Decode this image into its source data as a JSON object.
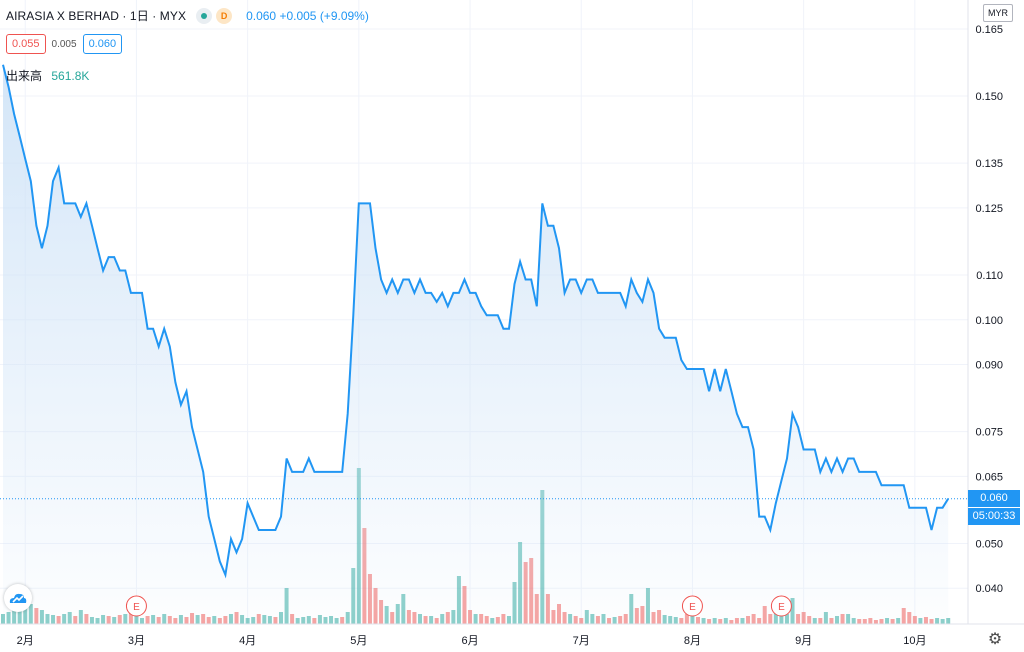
{
  "header": {
    "symbol_title": "AIRASIA X BERHAD · 1日 · MYX",
    "delay_badge": "D",
    "last_change": "0.060 +0.005 (+9.09%)"
  },
  "quote": {
    "bid": "0.055",
    "spread": "0.005",
    "ask": "0.060"
  },
  "volume": {
    "label": "出来高",
    "value": "561.8K"
  },
  "axis": {
    "currency": "MYR",
    "current_price_label": "0.060",
    "countdown_label": "05:00:33"
  },
  "colors": {
    "line": "#2196f3",
    "area_top": "#cfe3f7",
    "up_volume": "#26a69a",
    "down_volume": "#ef5350",
    "earnings_marker": "#ef5350",
    "grid": "#f0f3fa"
  },
  "icons": {
    "logo": "tradingview-cloud-logo",
    "settings": "gear-icon",
    "status": "market-open-dot"
  },
  "chart_data": {
    "type": "area",
    "ylim": [
      0.032,
      0.167
    ],
    "y_ticks": [
      "0.165",
      "0.150",
      "0.135",
      "0.125",
      "0.110",
      "0.100",
      "0.090",
      "0.075",
      "0.065",
      "0.050",
      "0.040"
    ],
    "y_tick_values": [
      0.165,
      0.15,
      0.135,
      0.125,
      0.11,
      0.1,
      0.09,
      0.075,
      0.065,
      0.05,
      0.04
    ],
    "month_labels": [
      "2月",
      "3月",
      "4月",
      "5月",
      "6月",
      "7月",
      "8月",
      "9月",
      "10月"
    ],
    "month_positions": [
      4,
      24,
      44,
      64,
      84,
      104,
      124,
      144,
      164
    ],
    "earnings_markers": {
      "label": "E",
      "indices": [
        24,
        124,
        140
      ]
    },
    "current_price": 0.06,
    "series": [
      {
        "values": [
          0.157,
          0.152,
          0.146,
          0.141,
          0.136,
          0.131,
          0.121,
          0.116,
          0.121,
          0.131,
          0.134,
          0.126,
          0.126,
          0.126,
          0.123,
          0.126,
          0.121,
          0.116,
          0.111,
          0.114,
          0.114,
          0.111,
          0.111,
          0.106,
          0.106,
          0.106,
          0.098,
          0.098,
          0.094,
          0.098,
          0.094,
          0.086,
          0.081,
          0.084,
          0.076,
          0.071,
          0.066,
          0.056,
          0.051,
          0.046,
          0.043,
          0.051,
          0.048,
          0.051,
          0.059,
          0.056,
          0.053,
          0.053,
          0.053,
          0.053,
          0.056,
          0.069,
          0.066,
          0.066,
          0.066,
          0.069,
          0.066,
          0.066,
          0.066,
          0.066,
          0.066,
          0.066,
          0.079,
          0.101,
          0.126,
          0.126,
          0.126,
          0.116,
          0.109,
          0.106,
          0.109,
          0.106,
          0.109,
          0.109,
          0.106,
          0.109,
          0.106,
          0.106,
          0.104,
          0.106,
          0.103,
          0.106,
          0.106,
          0.109,
          0.106,
          0.106,
          0.103,
          0.101,
          0.101,
          0.101,
          0.098,
          0.098,
          0.108,
          0.113,
          0.109,
          0.109,
          0.103,
          0.126,
          0.121,
          0.121,
          0.116,
          0.106,
          0.109,
          0.109,
          0.106,
          0.109,
          0.109,
          0.106,
          0.106,
          0.106,
          0.106,
          0.106,
          0.103,
          0.109,
          0.106,
          0.104,
          0.109,
          0.106,
          0.098,
          0.096,
          0.096,
          0.096,
          0.091,
          0.089,
          0.089,
          0.089,
          0.089,
          0.084,
          0.089,
          0.084,
          0.089,
          0.084,
          0.079,
          0.076,
          0.076,
          0.071,
          0.056,
          0.056,
          0.053,
          0.059,
          0.064,
          0.069,
          0.079,
          0.076,
          0.071,
          0.071,
          0.071,
          0.066,
          0.069,
          0.066,
          0.069,
          0.066,
          0.069,
          0.069,
          0.066,
          0.066,
          0.066,
          0.066,
          0.063,
          0.063,
          0.063,
          0.063,
          0.063,
          0.058,
          0.058,
          0.058,
          0.058,
          0.053,
          0.058,
          0.058,
          0.06
        ]
      }
    ],
    "volume_series": {
      "values": [
        0.1,
        0.12,
        0.18,
        0.17,
        0.22,
        0.2,
        0.16,
        0.14,
        0.1,
        0.09,
        0.08,
        0.1,
        0.12,
        0.08,
        0.14,
        0.1,
        0.07,
        0.06,
        0.09,
        0.08,
        0.07,
        0.09,
        0.1,
        0.12,
        0.11,
        0.06,
        0.08,
        0.09,
        0.07,
        0.1,
        0.08,
        0.06,
        0.09,
        0.07,
        0.11,
        0.09,
        0.1,
        0.07,
        0.08,
        0.06,
        0.08,
        0.1,
        0.12,
        0.09,
        0.06,
        0.07,
        0.1,
        0.09,
        0.08,
        0.07,
        0.12,
        0.36,
        0.1,
        0.06,
        0.07,
        0.08,
        0.06,
        0.09,
        0.07,
        0.08,
        0.06,
        0.07,
        0.12,
        0.56,
        1.56,
        0.96,
        0.5,
        0.36,
        0.24,
        0.18,
        0.12,
        0.2,
        0.3,
        0.14,
        0.12,
        0.1,
        0.08,
        0.08,
        0.06,
        0.1,
        0.12,
        0.14,
        0.48,
        0.38,
        0.14,
        0.1,
        0.1,
        0.08,
        0.06,
        0.07,
        0.1,
        0.08,
        0.42,
        0.82,
        0.62,
        0.66,
        0.3,
        1.34,
        0.3,
        0.14,
        0.2,
        0.12,
        0.1,
        0.08,
        0.06,
        0.14,
        0.1,
        0.08,
        0.1,
        0.06,
        0.07,
        0.08,
        0.1,
        0.3,
        0.16,
        0.18,
        0.36,
        0.12,
        0.14,
        0.09,
        0.08,
        0.07,
        0.06,
        0.1,
        0.08,
        0.07,
        0.06,
        0.05,
        0.06,
        0.05,
        0.06,
        0.04,
        0.06,
        0.06,
        0.08,
        0.1,
        0.06,
        0.18,
        0.1,
        0.12,
        0.14,
        0.1,
        0.26,
        0.1,
        0.12,
        0.08,
        0.06,
        0.06,
        0.12,
        0.06,
        0.08,
        0.1,
        0.1,
        0.06,
        0.05,
        0.05,
        0.06,
        0.04,
        0.05,
        0.06,
        0.05,
        0.06,
        0.16,
        0.12,
        0.08,
        0.06,
        0.07,
        0.05,
        0.06,
        0.05,
        0.06
      ],
      "up_flags": [
        1,
        1,
        1,
        1,
        1,
        1,
        0,
        1,
        1,
        1,
        0,
        1,
        1,
        0,
        1,
        0,
        1,
        1,
        1,
        0,
        1,
        0,
        1,
        0,
        1,
        1,
        0,
        1,
        0,
        1,
        0,
        0,
        1,
        0,
        0,
        1,
        0,
        0,
        1,
        0,
        0,
        1,
        0,
        1,
        1,
        1,
        0,
        1,
        1,
        0,
        1,
        1,
        0,
        1,
        1,
        1,
        0,
        1,
        1,
        1,
        1,
        0,
        1,
        1,
        1,
        0,
        0,
        0,
        0,
        1,
        0,
        1,
        1,
        0,
        0,
        1,
        0,
        1,
        0,
        1,
        0,
        1,
        1,
        0,
        0,
        1,
        0,
        0,
        1,
        0,
        0,
        1,
        1,
        1,
        0,
        0,
        0,
        1,
        0,
        0,
        0,
        0,
        1,
        0,
        0,
        1,
        1,
        0,
        1,
        0,
        1,
        0,
        0,
        1,
        0,
        0,
        1,
        0,
        0,
        1,
        1,
        1,
        0,
        0,
        1,
        0,
        1,
        0,
        1,
        0,
        1,
        0,
        0,
        1,
        0,
        0,
        0,
        0,
        0,
        1,
        1,
        1,
        1,
        0,
        0,
        0,
        1,
        0,
        1,
        0,
        1,
        0,
        1,
        1,
        0,
        0,
        0,
        0,
        0,
        1,
        0,
        1,
        0,
        0,
        0,
        1,
        0,
        0,
        1,
        1,
        1
      ]
    }
  }
}
